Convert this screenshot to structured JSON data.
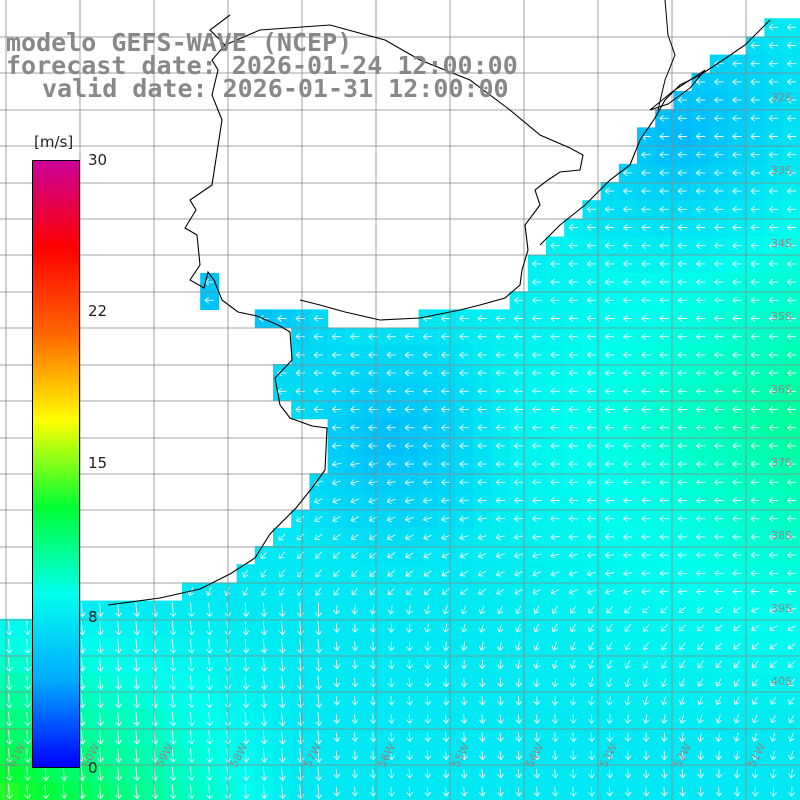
{
  "title": {
    "line1": "modelo GEFS-WAVE (NCEP)",
    "line2": "forecast date: 2026-01-24 12:00:00",
    "line3": "valid date: 2026-01-31 12:00:00"
  },
  "colorbar": {
    "unit": "[m/s]",
    "ticks": [
      "30",
      "22",
      "15",
      "8",
      "0"
    ],
    "tick_values": [
      30,
      22,
      15,
      8,
      0
    ],
    "stops": [
      "#0000ff",
      "#00aaff",
      "#00ffee",
      "#00ff33",
      "#ffff00",
      "#ff6600",
      "#ff0000",
      "#cc0099"
    ]
  },
  "axes": {
    "lat_labels": [
      "32S",
      "33S",
      "34S",
      "35S",
      "36S",
      "37S",
      "38S",
      "39S",
      "40S"
    ],
    "lon_labels": [
      "61W",
      "60W",
      "59W",
      "58W",
      "57W",
      "56W",
      "55W",
      "54W",
      "53W",
      "52W",
      "51W"
    ],
    "lon_range": [
      -62,
      -51
    ],
    "lat_range": [
      -41,
      -30
    ]
  },
  "colors": {
    "land": "#ffffff",
    "coast": "#000000",
    "grid": "#888888",
    "arrow": "#ffffff",
    "label": "#888888"
  }
}
